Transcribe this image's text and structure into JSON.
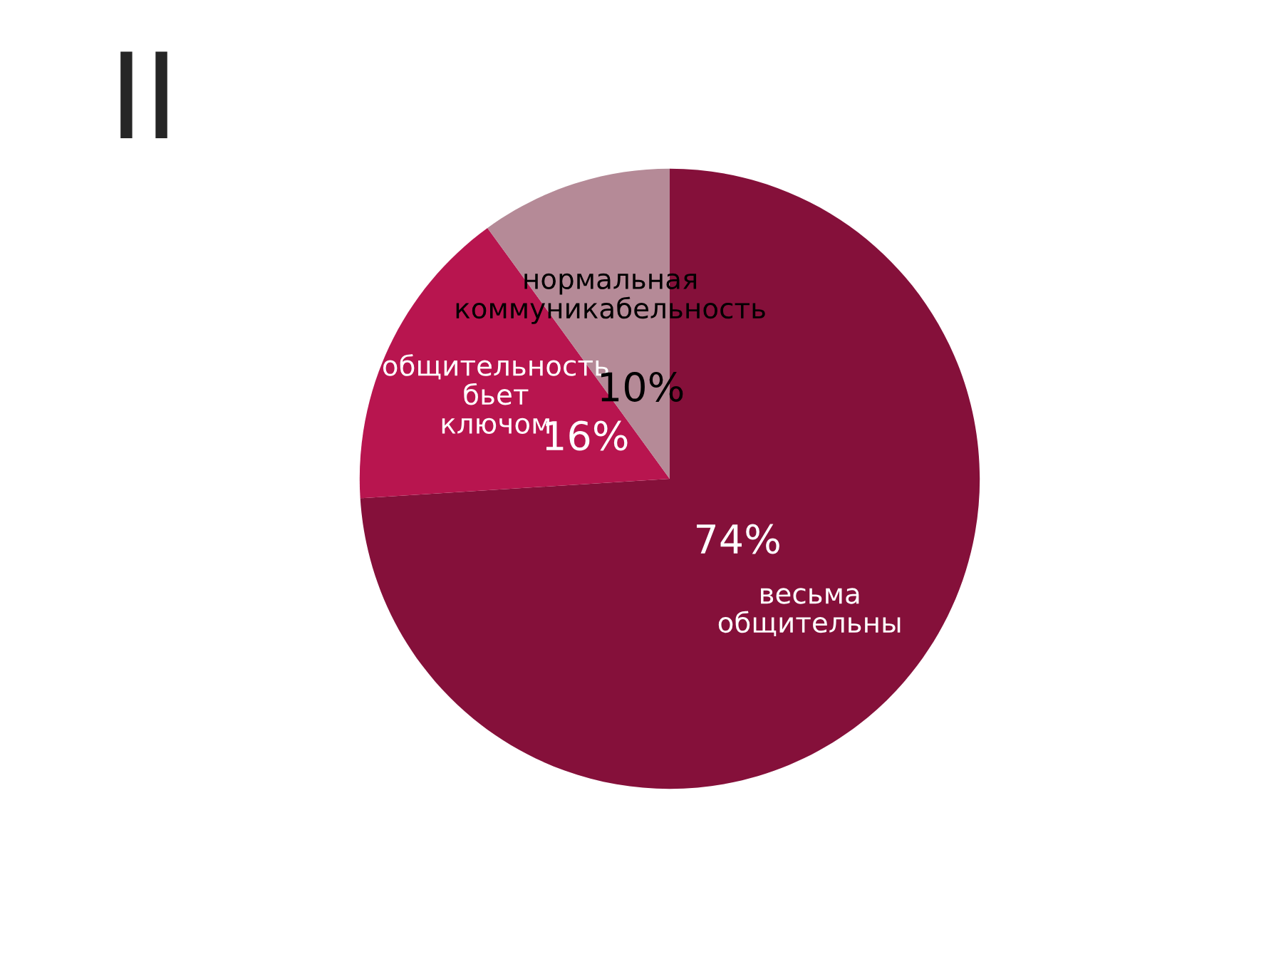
{
  "chart_data": {
    "type": "pie",
    "title": "II",
    "categories": [
      "весьма общительны",
      "общительность бьет ключом",
      "нормальная коммуникабельность"
    ],
    "values": [
      74,
      16,
      10
    ],
    "colors": [
      "#85103a",
      "#b8154f",
      "#b58a97"
    ],
    "value_labels": [
      "74%",
      "16%",
      "10%"
    ],
    "legend": false
  }
}
